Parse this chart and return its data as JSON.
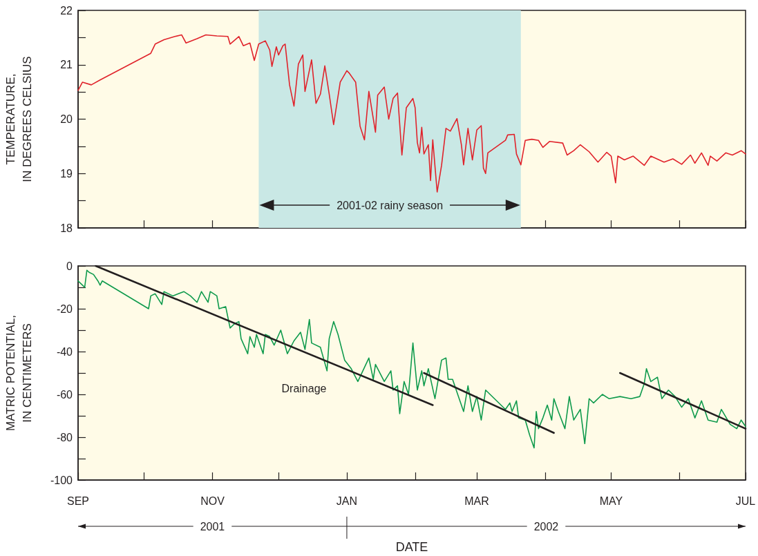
{
  "chart_data": [
    {
      "type": "line",
      "ylabel": "TEMPERATURE,\nIN DEGREES CELSIUS",
      "x": [
        "2001-09-01",
        "2001-09-03",
        "2001-09-07",
        "2001-09-11",
        "2001-10-04",
        "2001-10-06",
        "2001-10-10",
        "2001-10-15",
        "2001-10-18",
        "2001-10-20",
        "2001-10-25",
        "2001-10-29",
        "2001-11-03",
        "2001-11-08",
        "2001-11-09",
        "2001-11-13",
        "2001-11-15",
        "2001-11-18",
        "2001-11-20",
        "2001-11-22",
        "2001-11-25",
        "2001-11-27",
        "2001-11-28",
        "2001-11-30",
        "2001-12-01",
        "2001-12-03",
        "2001-12-04",
        "2001-12-06",
        "2001-12-08",
        "2001-12-10",
        "2001-12-12",
        "2001-12-13",
        "2001-12-16",
        "2001-12-18",
        "2001-12-20",
        "2001-12-22",
        "2001-12-24",
        "2001-12-26",
        "2001-12-29",
        "2002-01-01",
        "2002-01-02",
        "2002-01-05",
        "2002-01-07",
        "2002-01-09",
        "2002-01-11",
        "2002-01-14",
        "2002-01-15",
        "2002-01-18",
        "2002-01-20",
        "2002-01-22",
        "2002-01-24",
        "2002-01-26",
        "2002-01-28",
        "2002-01-31",
        "2002-02-01",
        "2002-02-02",
        "2002-02-03",
        "2002-02-04",
        "2002-02-05",
        "2002-02-07",
        "2002-02-08",
        "2002-02-09",
        "2002-02-11",
        "2002-02-13",
        "2002-02-15",
        "2002-02-17",
        "2002-02-20",
        "2002-02-22",
        "2002-02-23",
        "2002-02-25",
        "2002-02-27",
        "2002-03-01",
        "2002-03-03",
        "2002-03-04",
        "2002-03-05",
        "2002-03-06",
        "2002-03-14",
        "2002-03-15",
        "2002-03-18",
        "2002-03-19",
        "2002-03-21",
        "2002-03-23",
        "2002-03-26",
        "2002-03-29",
        "2002-03-31",
        "2002-04-03",
        "2002-04-09",
        "2002-04-11",
        "2002-04-14",
        "2002-04-17",
        "2002-04-21",
        "2002-04-25",
        "2002-04-29",
        "2002-05-01",
        "2002-05-03",
        "2002-05-04",
        "2002-05-07",
        "2002-05-11",
        "2002-05-16",
        "2002-05-19",
        "2002-05-25",
        "2002-05-29",
        "2002-06-02",
        "2002-06-06",
        "2002-06-08",
        "2002-06-11",
        "2002-06-14",
        "2002-06-15",
        "2002-06-18",
        "2002-06-22",
        "2002-06-25",
        "2002-06-29",
        "2002-07-01"
      ],
      "series": [
        {
          "color": "#e0232b",
          "values": [
            20.53,
            20.68,
            20.63,
            20.72,
            21.21,
            21.38,
            21.46,
            21.52,
            21.55,
            21.4,
            21.48,
            21.55,
            21.53,
            21.52,
            21.38,
            21.52,
            21.35,
            21.4,
            21.08,
            21.38,
            21.44,
            21.27,
            20.97,
            21.33,
            21.18,
            21.35,
            21.38,
            20.63,
            20.24,
            21.01,
            21.18,
            20.51,
            21.09,
            20.29,
            20.46,
            20.98,
            20.46,
            19.9,
            20.68,
            20.89,
            20.85,
            20.68,
            19.87,
            19.62,
            20.51,
            19.76,
            20.44,
            20.59,
            20.0,
            20.38,
            20.48,
            19.34,
            20.21,
            20.38,
            20.21,
            19.57,
            19.38,
            19.85,
            19.36,
            19.53,
            18.87,
            19.62,
            18.66,
            19.15,
            19.83,
            19.78,
            20.01,
            19.53,
            19.16,
            19.83,
            19.25,
            19.8,
            19.88,
            19.1,
            19.0,
            19.38,
            19.61,
            19.71,
            19.72,
            19.36,
            19.16,
            19.61,
            19.63,
            19.61,
            19.48,
            19.59,
            19.56,
            19.34,
            19.42,
            19.53,
            19.4,
            19.21,
            19.39,
            19.32,
            18.83,
            19.32,
            19.25,
            19.32,
            19.15,
            19.32,
            19.21,
            19.27,
            19.17,
            19.34,
            19.19,
            19.38,
            19.15,
            19.32,
            19.23,
            19.38,
            19.34,
            19.42,
            19.36
          ]
        }
      ],
      "xlim": [
        "2001-09-01",
        "2002-07-01"
      ],
      "xticks": [
        {
          "value": "2001-09",
          "label": null
        },
        {
          "value": "2001-10",
          "label": null
        },
        {
          "value": "2001-11",
          "label": null
        },
        {
          "value": "2001-12",
          "label": null
        },
        {
          "value": "2002-01",
          "label": null
        },
        {
          "value": "2002-02",
          "label": null
        },
        {
          "value": "2002-03",
          "label": null
        },
        {
          "value": "2002-04",
          "label": null
        },
        {
          "value": "2002-05",
          "label": null
        },
        {
          "value": "2002-06",
          "label": null
        },
        {
          "value": "2002-07",
          "label": null
        }
      ],
      "ylim": [
        18,
        22
      ],
      "yticks": [
        18,
        {
          "value": 18.5,
          "label": null
        },
        19,
        {
          "value": 19.5,
          "label": null
        },
        20,
        {
          "value": 20.5,
          "label": null
        },
        21,
        {
          "value": 21.5,
          "label": null
        },
        22
      ],
      "bands": [
        {
          "axis": "x",
          "from": "2001-11-22",
          "to": "2002-03-21",
          "label": "2001-02 rainy season",
          "color": "#c9e8e5"
        }
      ],
      "tick_labels": "y",
      "marker": "none"
    },
    {
      "type": "line",
      "ylabel": "MATRIC POTENTIAL,\nIN CENTIMETERS",
      "xlabel": "DATE",
      "x": [
        "2001-09-01",
        "2001-09-03",
        "2001-09-04",
        "2001-09-05",
        "2001-09-06",
        "2001-09-08",
        "2001-09-10",
        "2001-09-11",
        "2001-09-12",
        "2001-10-03",
        "2001-10-04",
        "2001-10-06",
        "2001-10-09",
        "2001-10-10",
        "2001-10-14",
        "2001-10-19",
        "2001-10-22",
        "2001-10-25",
        "2001-10-27",
        "2001-10-30",
        "2001-10-31",
        "2001-11-03",
        "2001-11-04",
        "2001-11-07",
        "2001-11-09",
        "2001-11-11",
        "2001-11-13",
        "2001-11-14",
        "2001-11-17",
        "2001-11-18",
        "2001-11-20",
        "2001-11-21",
        "2001-11-24",
        "2001-11-25",
        "2001-11-27",
        "2001-11-29",
        "2001-12-02",
        "2001-12-05",
        "2001-12-08",
        "2001-12-11",
        "2001-12-13",
        "2001-12-15",
        "2001-12-16",
        "2001-12-20",
        "2001-12-23",
        "2001-12-24",
        "2001-12-26",
        "2001-12-28",
        "2001-12-31",
        "2002-01-03",
        "2002-01-06",
        "2002-01-11",
        "2002-01-13",
        "2002-01-14",
        "2002-01-18",
        "2002-01-21",
        "2002-01-22",
        "2002-01-24",
        "2002-01-25",
        "2002-01-27",
        "2002-01-29",
        "2002-01-31",
        "2002-02-02",
        "2002-02-04",
        "2002-02-05",
        "2002-02-07",
        "2002-02-10",
        "2002-02-13",
        "2002-02-15",
        "2002-02-16",
        "2002-02-18",
        "2002-02-21",
        "2002-02-23",
        "2002-02-25",
        "2002-02-27",
        "2002-03-01",
        "2002-03-03",
        "2002-03-05",
        "2002-03-14",
        "2002-03-16",
        "2002-03-17",
        "2002-03-19",
        "2002-03-20",
        "2002-03-23",
        "2002-03-25",
        "2002-03-27",
        "2002-03-28",
        "2002-03-29",
        "2002-03-31",
        "2002-04-02",
        "2002-04-04",
        "2002-04-05",
        "2002-04-07",
        "2002-04-10",
        "2002-04-12",
        "2002-04-14",
        "2002-04-17",
        "2002-04-19",
        "2002-04-21",
        "2002-04-23",
        "2002-04-27",
        "2002-04-30",
        "2002-05-05",
        "2002-05-10",
        "2002-05-14",
        "2002-05-16",
        "2002-05-17",
        "2002-05-19",
        "2002-05-22",
        "2002-05-24",
        "2002-05-27",
        "2002-05-30",
        "2002-06-02",
        "2002-06-05",
        "2002-06-08",
        "2002-06-11",
        "2002-06-14",
        "2002-06-18",
        "2002-06-20",
        "2002-06-24",
        "2002-06-27",
        "2002-06-29",
        "2002-07-01"
      ],
      "series": [
        {
          "color": "#0e9a4c",
          "values": [
            -7,
            -9,
            -10,
            -2,
            -3,
            -4,
            -7,
            -9,
            -7,
            -20,
            -14,
            -13,
            -18,
            -12,
            -14,
            -12,
            -14,
            -17,
            -12,
            -17,
            -12,
            -14,
            -20,
            -19,
            -29,
            -27,
            -26,
            -34,
            -41,
            -33,
            -38,
            -32,
            -41,
            -32,
            -33,
            -37,
            -30,
            -41,
            -35,
            -31,
            -39,
            -25,
            -36,
            -38,
            -49,
            -34,
            -26,
            -32,
            -44,
            -48,
            -54,
            -43,
            -53,
            -46,
            -54,
            -49,
            -58,
            -56,
            -69,
            -54,
            -60,
            -36,
            -58,
            -49,
            -56,
            -48,
            -62,
            -44,
            -43,
            -53,
            -53,
            -62,
            -68,
            -56,
            -68,
            -61,
            -72,
            -58,
            -67,
            -64,
            -68,
            -63,
            -71,
            -72,
            -79,
            -85,
            -68,
            -76,
            -71,
            -65,
            -72,
            -62,
            -68,
            -76,
            -61,
            -72,
            -67,
            -83,
            -62,
            -64,
            -60,
            -62,
            -61,
            -62,
            -61,
            -55,
            -48,
            -54,
            -52,
            -62,
            -58,
            -61,
            -66,
            -62,
            -71,
            -63,
            -72,
            -73,
            -67,
            -74,
            -76,
            -72,
            -75
          ]
        },
        {
          "color": "#231f20",
          "x": [
            "2001-09-09",
            "2002-02-09"
          ],
          "values": [
            0,
            -65
          ]
        },
        {
          "color": "#231f20",
          "x": [
            "2002-02-05",
            "2002-04-05"
          ],
          "values": [
            -50,
            -78
          ]
        },
        {
          "color": "#231f20",
          "x": [
            "2002-05-05",
            "2002-07-01"
          ],
          "values": [
            -50,
            -76
          ]
        }
      ],
      "xlim": [
        "2001-09-01",
        "2002-07-01"
      ],
      "xticks": [
        {
          "value": "2001-09",
          "label": "SEP"
        },
        {
          "value": "2001-10",
          "label": null
        },
        {
          "value": "2001-11",
          "label": "NOV"
        },
        {
          "value": "2001-12",
          "label": null
        },
        {
          "value": "2002-01",
          "label": "JAN"
        },
        {
          "value": "2002-02",
          "label": null
        },
        {
          "value": "2002-03",
          "label": "MAR"
        },
        {
          "value": "2002-04",
          "label": null
        },
        {
          "value": "2002-05",
          "label": "MAY"
        },
        {
          "value": "2002-06",
          "label": null
        },
        {
          "value": "2002-07",
          "label": "JUL"
        }
      ],
      "ylim": [
        -100,
        0
      ],
      "yticks": [
        -100,
        {
          "value": -90,
          "label": null
        },
        -80,
        {
          "value": -70,
          "label": null
        },
        -60,
        {
          "value": -50,
          "label": null
        },
        -40,
        {
          "value": -30,
          "label": null
        },
        -20,
        {
          "value": -10,
          "label": null
        },
        0
      ],
      "annotations": [
        "Drainage",
        "2001",
        "2002"
      ],
      "marker": "none"
    }
  ]
}
